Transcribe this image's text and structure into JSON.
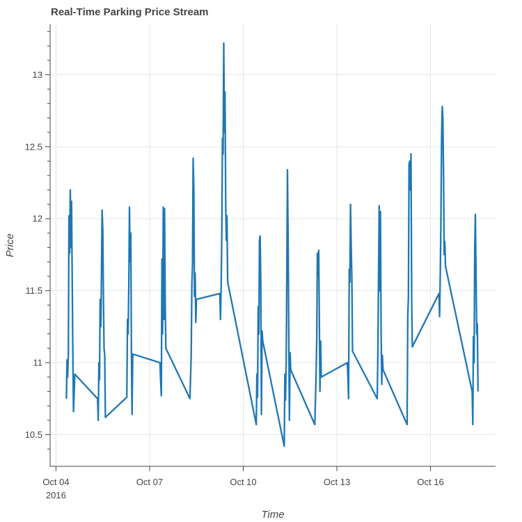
{
  "chart_data": {
    "type": "line",
    "title": "Real-Time Parking Price Stream",
    "xlabel": "Time",
    "ylabel": "Price",
    "x_type": "datetime",
    "xlim": [
      "2016-10-03T19:30",
      "2016-10-18T02:00"
    ],
    "ylim": [
      10.28,
      13.35
    ],
    "grid": true,
    "x_ticks": [
      {
        "at": "2016-10-04T00:00",
        "label": "Oct 04",
        "sublabel": "2016"
      },
      {
        "at": "2016-10-07T00:00",
        "label": "Oct 07"
      },
      {
        "at": "2016-10-10T00:00",
        "label": "Oct 10"
      },
      {
        "at": "2016-10-13T00:00",
        "label": "Oct 13"
      },
      {
        "at": "2016-10-16T00:00",
        "label": "Oct 16"
      }
    ],
    "y_ticks": [
      {
        "value": 10.5,
        "label": "10.5"
      },
      {
        "value": 11,
        "label": "11"
      },
      {
        "value": 11.5,
        "label": "11.5"
      },
      {
        "value": 12,
        "label": "12"
      },
      {
        "value": 12.5,
        "label": "12.5"
      },
      {
        "value": 13,
        "label": "13"
      }
    ],
    "y_minor_ticks": [
      10.4,
      10.6,
      10.7,
      10.8,
      10.9,
      11.1,
      11.2,
      11.3,
      11.4,
      11.6,
      11.7,
      11.8,
      11.9,
      12.1,
      12.2,
      12.3,
      12.4,
      12.6,
      12.7,
      12.8,
      12.9,
      13.1,
      13.2,
      13.3
    ],
    "series": [
      {
        "color": "#1f77b4",
        "points": [
          [
            "2016-10-04T08:00",
            10.75
          ],
          [
            "2016-10-04T08:30",
            11.02
          ],
          [
            "2016-10-04T09:00",
            10.9
          ],
          [
            "2016-10-04T09:30",
            11.05
          ],
          [
            "2016-10-04T10:00",
            12.02
          ],
          [
            "2016-10-04T10:30",
            11.76
          ],
          [
            "2016-10-04T11:00",
            12.2
          ],
          [
            "2016-10-04T11:30",
            11.8
          ],
          [
            "2016-10-04T12:00",
            12.12
          ],
          [
            "2016-10-04T12:30",
            11.55
          ],
          [
            "2016-10-04T13:00",
            11.05
          ],
          [
            "2016-10-04T13:30",
            10.66
          ],
          [
            "2016-10-04T14:30",
            10.92
          ],
          [
            "2016-10-05T08:00",
            10.75
          ],
          [
            "2016-10-05T08:30",
            10.6
          ],
          [
            "2016-10-05T09:00",
            11.0
          ],
          [
            "2016-10-05T09:30",
            10.88
          ],
          [
            "2016-10-05T10:00",
            11.44
          ],
          [
            "2016-10-05T10:30",
            11.25
          ],
          [
            "2016-10-05T11:00",
            11.6
          ],
          [
            "2016-10-05T11:30",
            12.06
          ],
          [
            "2016-10-05T12:00",
            11.92
          ],
          [
            "2016-10-05T12:30",
            11.45
          ],
          [
            "2016-10-05T13:00",
            11.1
          ],
          [
            "2016-10-05T13:30",
            11.05
          ],
          [
            "2016-10-05T14:00",
            10.62
          ],
          [
            "2016-10-06T06:30",
            10.76
          ],
          [
            "2016-10-06T07:00",
            11.3
          ],
          [
            "2016-10-06T07:30",
            11.2
          ],
          [
            "2016-10-06T08:00",
            11.55
          ],
          [
            "2016-10-06T08:30",
            12.08
          ],
          [
            "2016-10-06T09:00",
            11.7
          ],
          [
            "2016-10-06T09:30",
            11.9
          ],
          [
            "2016-10-06T10:00",
            11.1
          ],
          [
            "2016-10-06T10:30",
            10.64
          ],
          [
            "2016-10-06T11:00",
            11.06
          ],
          [
            "2016-10-07T08:00",
            11.0
          ],
          [
            "2016-10-07T08:30",
            10.87
          ],
          [
            "2016-10-07T09:00",
            10.77
          ],
          [
            "2016-10-07T09:30",
            11.72
          ],
          [
            "2016-10-07T10:00",
            11.2
          ],
          [
            "2016-10-07T10:30",
            12.08
          ],
          [
            "2016-10-07T11:00",
            11.3
          ],
          [
            "2016-10-07T11:30",
            12.07
          ],
          [
            "2016-10-07T12:00",
            11.4
          ],
          [
            "2016-10-07T12:30",
            11.1
          ],
          [
            "2016-10-08T07:00",
            10.75
          ],
          [
            "2016-10-08T08:00",
            11.05
          ],
          [
            "2016-10-08T08:30",
            11.55
          ],
          [
            "2016-10-08T09:00",
            11.68
          ],
          [
            "2016-10-08T09:30",
            12.42
          ],
          [
            "2016-10-08T10:00",
            12.2
          ],
          [
            "2016-10-08T10:30",
            11.46
          ],
          [
            "2016-10-08T11:00",
            11.62
          ],
          [
            "2016-10-08T11:30",
            11.28
          ],
          [
            "2016-10-08T12:00",
            11.44
          ],
          [
            "2016-10-09T06:00",
            11.48
          ],
          [
            "2016-10-09T06:30",
            11.3
          ],
          [
            "2016-10-09T07:00",
            11.52
          ],
          [
            "2016-10-09T07:30",
            11.9
          ],
          [
            "2016-10-09T08:00",
            12.56
          ],
          [
            "2016-10-09T08:30",
            12.45
          ],
          [
            "2016-10-09T09:00",
            13.22
          ],
          [
            "2016-10-09T09:30",
            12.6
          ],
          [
            "2016-10-09T10:00",
            12.88
          ],
          [
            "2016-10-09T10:30",
            12.1
          ],
          [
            "2016-10-09T11:00",
            11.85
          ],
          [
            "2016-10-09T11:30",
            12.02
          ],
          [
            "2016-10-09T12:00",
            11.56
          ],
          [
            "2016-10-10T10:00",
            10.57
          ],
          [
            "2016-10-10T10:30",
            10.92
          ],
          [
            "2016-10-10T11:00",
            10.76
          ],
          [
            "2016-10-10T11:30",
            11.39
          ],
          [
            "2016-10-10T12:00",
            11.2
          ],
          [
            "2016-10-10T12:30",
            11.85
          ],
          [
            "2016-10-10T13:00",
            11.88
          ],
          [
            "2016-10-10T13:30",
            11.55
          ],
          [
            "2016-10-10T14:00",
            10.64
          ],
          [
            "2016-10-10T14:30",
            11.22
          ],
          [
            "2016-10-10T15:00",
            11.15
          ],
          [
            "2016-10-11T07:30",
            10.42
          ],
          [
            "2016-10-11T08:00",
            10.92
          ],
          [
            "2016-10-11T08:30",
            10.74
          ],
          [
            "2016-10-11T09:00",
            11.0
          ],
          [
            "2016-10-11T09:30",
            11.6
          ],
          [
            "2016-10-11T10:00",
            12.34
          ],
          [
            "2016-10-11T10:30",
            11.84
          ],
          [
            "2016-10-11T11:00",
            11.2
          ],
          [
            "2016-10-11T11:30",
            10.6
          ],
          [
            "2016-10-11T12:00",
            11.07
          ],
          [
            "2016-10-11T12:30",
            10.95
          ],
          [
            "2016-10-12T07:00",
            10.57
          ],
          [
            "2016-10-12T08:00",
            10.9
          ],
          [
            "2016-10-12T08:30",
            11.16
          ],
          [
            "2016-10-12T09:00",
            11.76
          ],
          [
            "2016-10-12T09:30",
            11.6
          ],
          [
            "2016-10-12T10:00",
            11.78
          ],
          [
            "2016-10-12T10:30",
            11.3
          ],
          [
            "2016-10-12T11:00",
            10.8
          ],
          [
            "2016-10-12T11:30",
            11.15
          ],
          [
            "2016-10-12T12:00",
            10.9
          ],
          [
            "2016-10-13T08:00",
            11.0
          ],
          [
            "2016-10-13T08:30",
            10.9
          ],
          [
            "2016-10-13T09:00",
            10.75
          ],
          [
            "2016-10-13T09:30",
            11.65
          ],
          [
            "2016-10-13T10:00",
            11.56
          ],
          [
            "2016-10-13T10:30",
            12.1
          ],
          [
            "2016-10-13T11:00",
            11.8
          ],
          [
            "2016-10-13T11:30",
            11.6
          ],
          [
            "2016-10-13T12:00",
            11.08
          ],
          [
            "2016-10-14T07:00",
            10.75
          ],
          [
            "2016-10-14T07:30",
            11.05
          ],
          [
            "2016-10-14T08:00",
            11.55
          ],
          [
            "2016-10-14T08:30",
            12.09
          ],
          [
            "2016-10-14T09:00",
            11.5
          ],
          [
            "2016-10-14T09:30",
            12.05
          ],
          [
            "2016-10-14T10:00",
            11.2
          ],
          [
            "2016-10-14T10:30",
            10.85
          ],
          [
            "2016-10-14T11:00",
            11.05
          ],
          [
            "2016-10-14T11:30",
            10.95
          ],
          [
            "2016-10-15T06:00",
            10.57
          ],
          [
            "2016-10-15T06:30",
            11.33
          ],
          [
            "2016-10-15T07:00",
            11.45
          ],
          [
            "2016-10-15T07:30",
            12.38
          ],
          [
            "2016-10-15T08:00",
            12.4
          ],
          [
            "2016-10-15T08:30",
            12.2
          ],
          [
            "2016-10-15T09:00",
            12.45
          ],
          [
            "2016-10-15T09:30",
            11.45
          ],
          [
            "2016-10-15T10:00",
            11.11
          ],
          [
            "2016-10-16T06:30",
            11.48
          ],
          [
            "2016-10-16T07:00",
            11.32
          ],
          [
            "2016-10-16T07:30",
            11.62
          ],
          [
            "2016-10-16T08:00",
            11.98
          ],
          [
            "2016-10-16T08:30",
            12.57
          ],
          [
            "2016-10-16T09:00",
            12.78
          ],
          [
            "2016-10-16T09:30",
            12.7
          ],
          [
            "2016-10-16T10:00",
            12.3
          ],
          [
            "2016-10-16T10:30",
            11.75
          ],
          [
            "2016-10-16T11:00",
            11.84
          ],
          [
            "2016-10-16T11:30",
            11.67
          ],
          [
            "2016-10-17T08:00",
            10.8
          ],
          [
            "2016-10-17T08:30",
            10.57
          ],
          [
            "2016-10-17T09:00",
            11.18
          ],
          [
            "2016-10-17T09:30",
            11.0
          ],
          [
            "2016-10-17T10:00",
            11.8
          ],
          [
            "2016-10-17T10:30",
            12.03
          ],
          [
            "2016-10-17T11:00",
            11.6
          ],
          [
            "2016-10-17T11:30",
            11.2
          ],
          [
            "2016-10-17T12:00",
            11.27
          ],
          [
            "2016-10-17T12:30",
            10.8
          ]
        ]
      }
    ]
  }
}
